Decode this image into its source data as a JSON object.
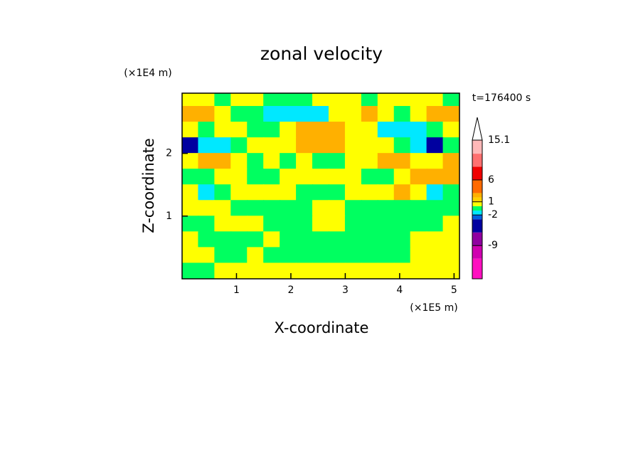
{
  "chart_data": {
    "type": "contour",
    "title": "zonal velocity",
    "x_label": "X-coordinate",
    "y_label": "Z-coordinate",
    "x_unit": "(×1E5 m)",
    "y_unit": "(×1E4 m)",
    "time_label": "t=176400 s",
    "xlim": [
      0,
      5.1
    ],
    "ylim": [
      0,
      2.96
    ],
    "xticks": [
      1,
      2,
      3,
      4,
      5
    ],
    "yticks": [
      1,
      2
    ],
    "x": [
      0.15,
      0.45,
      0.75,
      1.05,
      1.35,
      1.65,
      1.95,
      2.25,
      2.55,
      2.85,
      3.15,
      3.45,
      3.75,
      4.05,
      4.35,
      4.65,
      4.95
    ],
    "z": [
      2.875,
      2.625,
      2.375,
      2.125,
      1.875,
      1.625,
      1.375,
      1.125,
      0.875,
      0.625,
      0.375,
      0.125
    ],
    "values": [
      [
        0.5,
        0.5,
        -0.5,
        0.5,
        0.5,
        -0.5,
        -0.5,
        -0.5,
        0.5,
        0.5,
        0.5,
        -0.5,
        0.5,
        0.5,
        0.5,
        0.5,
        -0.5
      ],
      [
        2.5,
        2.5,
        0.5,
        -0.5,
        -0.5,
        -1.5,
        -1.5,
        -1.5,
        -1.5,
        0.5,
        0.5,
        2.5,
        0.5,
        -0.5,
        0.5,
        2.5,
        2.5
      ],
      [
        0.5,
        -0.5,
        0.5,
        0.5,
        -0.5,
        -0.5,
        0.5,
        2.5,
        2.5,
        2.5,
        0.5,
        0.5,
        -1.5,
        -1.5,
        -1.5,
        -0.5,
        0.5
      ],
      [
        -4,
        -1.5,
        -1.5,
        -0.5,
        0.5,
        0.5,
        0.5,
        2.5,
        2.5,
        2.5,
        0.5,
        0.5,
        0.5,
        -0.5,
        -1.5,
        -4,
        -0.5
      ],
      [
        0.5,
        2.5,
        2.5,
        0.5,
        -0.5,
        0.5,
        -0.5,
        0.5,
        -0.5,
        -0.5,
        0.5,
        0.5,
        2.5,
        2.5,
        0.5,
        0.5,
        2.5
      ],
      [
        -0.5,
        -0.5,
        0.5,
        0.5,
        -0.5,
        -0.5,
        0.5,
        0.5,
        0.5,
        0.5,
        0.5,
        -0.5,
        -0.5,
        0.5,
        2.5,
        2.5,
        2.5
      ],
      [
        0.5,
        -1.5,
        -0.5,
        0.5,
        0.5,
        0.5,
        0.5,
        -0.5,
        -0.5,
        -0.5,
        0.5,
        0.5,
        0.5,
        2.5,
        0.5,
        -1.5,
        -0.5
      ],
      [
        0.5,
        0.5,
        0.5,
        -0.5,
        -0.5,
        -0.5,
        -0.5,
        -0.5,
        0.5,
        0.5,
        -0.5,
        -0.5,
        -0.5,
        -0.5,
        -0.5,
        -0.5,
        -0.5
      ],
      [
        -0.5,
        -0.5,
        0.5,
        0.5,
        0.5,
        -0.5,
        -0.5,
        -0.5,
        0.5,
        0.5,
        -0.5,
        -0.5,
        -0.5,
        -0.5,
        -0.5,
        -0.5,
        0.5
      ],
      [
        0.5,
        -0.5,
        -0.5,
        -0.5,
        -0.5,
        0.5,
        -0.5,
        -0.5,
        -0.5,
        -0.5,
        -0.5,
        -0.5,
        -0.5,
        -0.5,
        0.5,
        0.5,
        0.5
      ],
      [
        0.5,
        0.5,
        -0.5,
        -0.5,
        0.5,
        -0.5,
        -0.5,
        -0.5,
        -0.5,
        -0.5,
        -0.5,
        -0.5,
        -0.5,
        -0.5,
        0.5,
        0.5,
        0.5
      ],
      [
        -0.5,
        -0.5,
        0.5,
        0.5,
        0.5,
        0.5,
        0.5,
        0.5,
        0.5,
        0.5,
        0.5,
        0.5,
        0.5,
        0.5,
        0.5,
        0.5,
        0.5
      ]
    ],
    "clim": [
      -16.6,
      15.1
    ],
    "levels": [
      -12,
      -9,
      -6,
      -3,
      -2,
      -1,
      0,
      1,
      2,
      3,
      6,
      9,
      12
    ],
    "colors": [
      "#ff10c0",
      "#d000b0",
      "#9000a0",
      "#0000a0",
      "#0060e0",
      "#00e8ff",
      "#00ff60",
      "#ffff00",
      "#ffd000",
      "#ffb000",
      "#ff6a00",
      "#f00000",
      "#ff7070",
      "#ffb8b8"
    ],
    "colorbar_ticks": [
      -9,
      -2,
      1,
      6,
      15.1
    ]
  }
}
